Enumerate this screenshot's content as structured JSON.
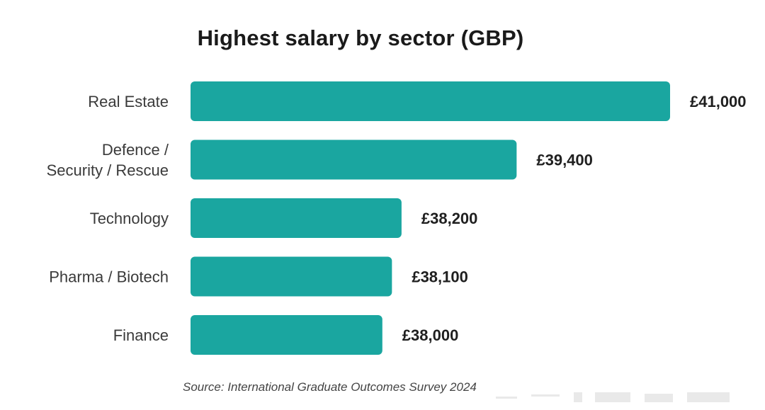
{
  "colors": {
    "bar": "#1aa6a0",
    "text": "#3a3a3a",
    "value_text": "#1f1f1f"
  },
  "source": "Source: International Graduate Outcomes Survey 2024",
  "chart_data": {
    "type": "bar",
    "orientation": "horizontal",
    "title": "Highest salary by sector (GBP)",
    "xlabel": "",
    "ylabel": "",
    "grid": false,
    "categories": [
      "Real Estate",
      "Defence / Security / Rescue",
      "Technology",
      "Pharma / Biotech",
      "Finance"
    ],
    "category_lines": [
      [
        "Real Estate"
      ],
      [
        "Defence /",
        "Security / Rescue"
      ],
      [
        "Technology"
      ],
      [
        "Pharma / Biotech"
      ],
      [
        "Finance"
      ]
    ],
    "values": [
      41000,
      39400,
      38200,
      38100,
      38000
    ],
    "value_labels": [
      "£41,000",
      "£39,400",
      "£38,200",
      "£38,100",
      "£38,000"
    ],
    "xlim": [
      36000,
      41000
    ]
  }
}
